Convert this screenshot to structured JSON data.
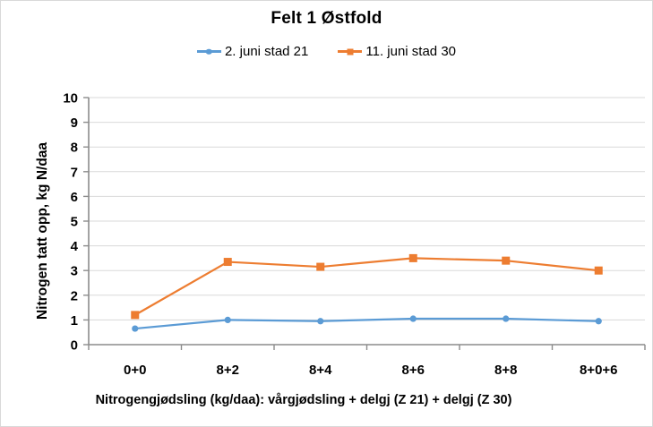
{
  "window": {
    "background": "#ffffff",
    "border_color": "#d9d9d9"
  },
  "chart_data": {
    "type": "line",
    "title": "Felt 1 Østfold",
    "categories": [
      "0+0",
      "8+2",
      "8+4",
      "8+6",
      "8+8",
      "8+0+6"
    ],
    "series": [
      {
        "name": "2. juni stad 21",
        "color": "#5B9BD5",
        "marker": "circle",
        "values": [
          0.65,
          1.0,
          0.95,
          1.05,
          1.05,
          0.95
        ]
      },
      {
        "name": "11. juni stad 30",
        "color": "#ED7D31",
        "marker": "square",
        "values": [
          1.2,
          3.35,
          3.15,
          3.5,
          3.4,
          3.0
        ]
      }
    ],
    "xlabel": "Nitrogengjødsling (kg/daa): vårgjødsling + delgj (Z 21) + delgj (Z 30)",
    "ylabel": "Nitrogen tatt opp, kg N/daa",
    "ylim": [
      0,
      10
    ],
    "ytick_step": 1,
    "yticks": [
      0,
      1,
      2,
      3,
      4,
      5,
      6,
      7,
      8,
      9,
      10
    ],
    "grid": true,
    "legend_position": "top",
    "gridline_color": "#d9d9d9",
    "axis_color": "#8c8c8c",
    "text_color": "#000000"
  }
}
